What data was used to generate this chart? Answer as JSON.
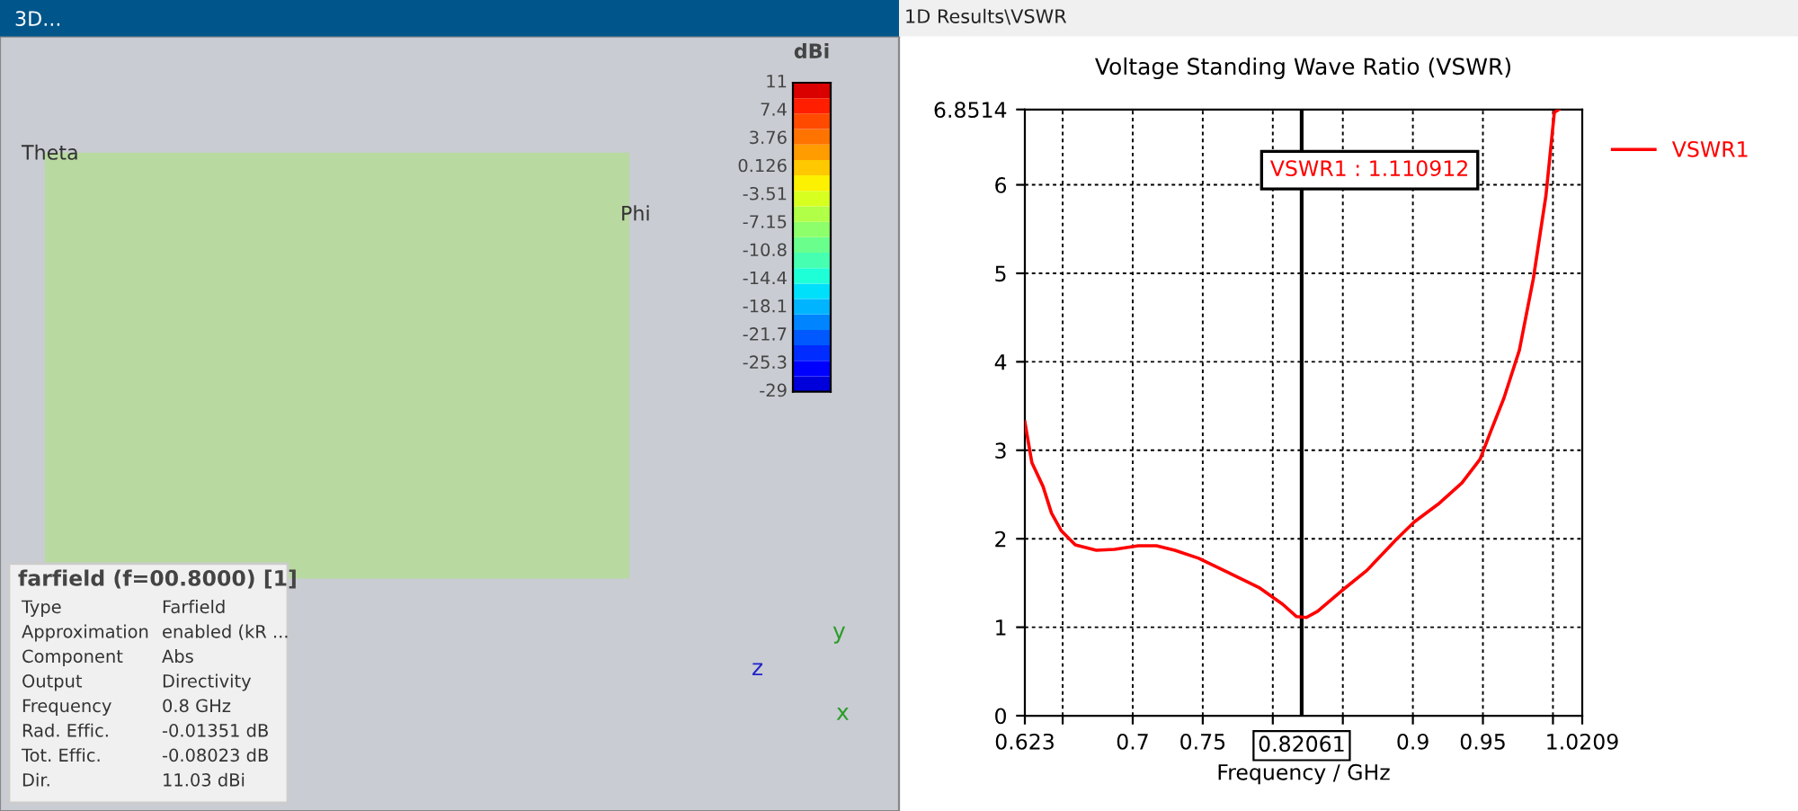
{
  "chart_data": [
    {
      "type": "other",
      "title": "farfield (f=00.8000) [1]",
      "clabel": "dBi",
      "annotations": [
        "11",
        "7.4",
        "3.76",
        "0.126",
        "-3.51",
        "-7.15",
        "-10.8",
        "-14.4",
        "-18.1",
        "-21.7",
        "-25.3",
        "-29",
        "Type",
        "Farfield",
        "Approximation",
        "enabled (kR ...",
        "Component",
        "Abs",
        "Output",
        "Directivity",
        "Frequency",
        "0.8 GHz",
        "Rad. Effic.",
        "-0.01351 dB",
        "Tot. Effic.",
        "-0.08023 dB",
        "Dir.",
        "11.03 dBi",
        "3D...",
        "Theta",
        "Phi",
        "x",
        "y",
        "z"
      ]
    },
    {
      "type": "line",
      "title": "Voltage Standing Wave Ratio (VSWR)",
      "xlabel": "Frequency / GHz",
      "x": [
        0.623,
        0.628,
        0.636,
        0.642,
        0.649,
        0.659,
        0.674,
        0.687,
        0.704,
        0.717,
        0.73,
        0.747,
        0.768,
        0.79,
        0.807,
        0.817,
        0.824,
        0.832,
        0.849,
        0.867,
        0.888,
        0.901,
        0.918,
        0.935,
        0.948,
        0.955,
        0.965,
        0.976,
        0.986,
        0.995,
        1.001,
        1.004
      ],
      "series": [
        {
          "name": "VSWR1",
          "color": "#ff0000",
          "values": [
            3.32,
            2.86,
            2.59,
            2.29,
            2.09,
            1.93,
            1.87,
            1.88,
            1.92,
            1.92,
            1.87,
            1.78,
            1.62,
            1.45,
            1.26,
            1.12,
            1.11,
            1.18,
            1.41,
            1.64,
            1.99,
            2.19,
            2.39,
            2.63,
            2.9,
            3.19,
            3.59,
            4.13,
            4.94,
            5.88,
            6.82,
            6.85
          ]
        }
      ],
      "xlim": [
        0.623,
        1.0209
      ],
      "ylim": [
        0,
        6.8514
      ],
      "xticks": [
        0.623,
        {
          "value": 0.65,
          "label": null
        },
        0.7,
        0.75,
        {
          "value": 0.8,
          "label": null
        },
        {
          "value": 0.85,
          "label": null
        },
        0.9,
        0.95,
        {
          "value": 1.0,
          "label": null
        },
        1.0209
      ],
      "yticks": [
        0,
        1,
        2,
        3,
        4,
        5,
        6,
        6.8514
      ],
      "grid": true,
      "legend": "right",
      "marker": "none",
      "line_style": "solid",
      "ref_lines": [
        {
          "axis": "x",
          "value": 0.82061,
          "label": "0.82061",
          "color": "#000000"
        }
      ],
      "annotations": [
        "VSWR1 : 1.110912",
        "1D Results\\VSWR"
      ]
    }
  ]
}
